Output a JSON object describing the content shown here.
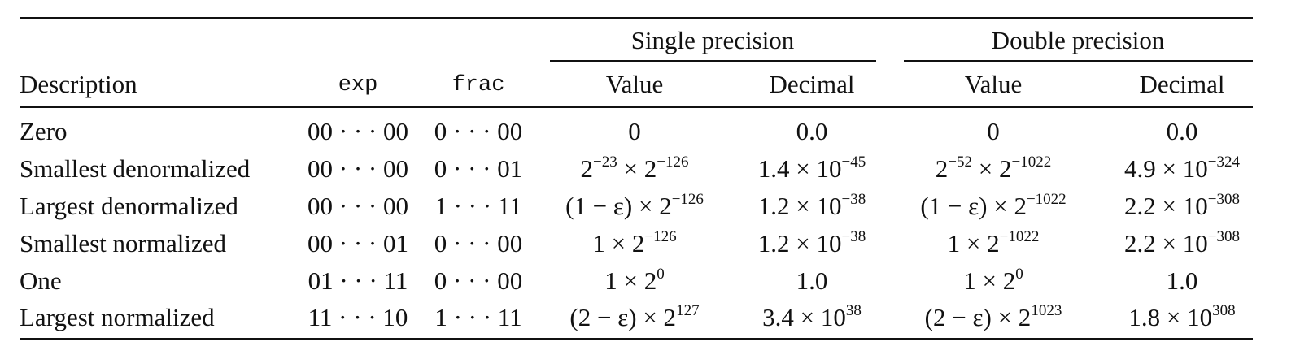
{
  "header": {
    "group_single": "Single precision",
    "group_double": "Double precision",
    "columns": {
      "description": "Description",
      "exp": "exp",
      "frac": "frac",
      "single_value": "Value",
      "single_decimal": "Decimal",
      "double_value": "Value",
      "double_decimal": "Decimal"
    }
  },
  "rows": [
    {
      "description": "Zero",
      "exp": "00 · · · 00",
      "frac": "0 · · · 00",
      "single_value": "0",
      "single_decimal": "0.0",
      "double_value": "0",
      "double_decimal": "0.0"
    },
    {
      "description": "Smallest denormalized",
      "exp": "00 · · · 00",
      "frac": "0 · · · 01",
      "single_value": [
        "2",
        "−23",
        " × 2",
        "−126"
      ],
      "single_decimal": [
        "1.4 × 10",
        "−45"
      ],
      "double_value": [
        "2",
        "−52",
        " × 2",
        "−1022"
      ],
      "double_decimal": [
        "4.9 × 10",
        "−324"
      ]
    },
    {
      "description": "Largest denormalized",
      "exp": "00 · · · 00",
      "frac": "1 · · · 11",
      "single_value": [
        "(1 − ε) × 2",
        "−126"
      ],
      "single_decimal": [
        "1.2 × 10",
        "−38"
      ],
      "double_value": [
        "(1 − ε) × 2",
        "−1022"
      ],
      "double_decimal": [
        "2.2 × 10",
        "−308"
      ]
    },
    {
      "description": "Smallest normalized",
      "exp": "00 · · · 01",
      "frac": "0 · · · 00",
      "single_value": [
        "1 × 2",
        "−126"
      ],
      "single_decimal": [
        "1.2 × 10",
        "−38"
      ],
      "double_value": [
        "1 × 2",
        "−1022"
      ],
      "double_decimal": [
        "2.2 × 10",
        "−308"
      ]
    },
    {
      "description": "One",
      "exp": "01 · · · 11",
      "frac": "0 · · · 00",
      "single_value": [
        "1 × 2",
        "0"
      ],
      "single_decimal": "1.0",
      "double_value": [
        "1 × 2",
        "0"
      ],
      "double_decimal": "1.0"
    },
    {
      "description": "Largest normalized",
      "exp": "11 · · · 10",
      "frac": "1 · · · 11",
      "single_value": [
        "(2 − ε) × 2",
        "127"
      ],
      "single_decimal": [
        "3.4 × 10",
        "38"
      ],
      "double_value": [
        "(2 − ε) × 2",
        "1023"
      ],
      "double_decimal": [
        "1.8 × 10",
        "308"
      ]
    }
  ]
}
